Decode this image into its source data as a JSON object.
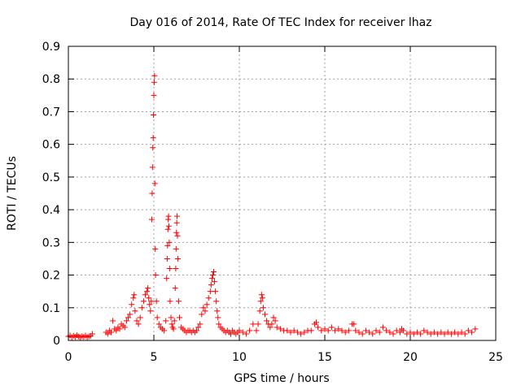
{
  "chart_data": {
    "type": "scatter",
    "title": "Day 016 of 2014, Rate Of TEC Index for receiver lhaz",
    "xlabel": "GPS time / hours",
    "ylabel": "ROTI / TECUs",
    "xlim": [
      0,
      25
    ],
    "ylim": [
      0,
      0.9
    ],
    "xticks": [
      0,
      5,
      10,
      15,
      20,
      25
    ],
    "yticks": [
      0,
      0.1,
      0.2,
      0.3,
      0.4,
      0.5,
      0.6,
      0.7,
      0.8,
      0.9
    ],
    "grid": true,
    "legend": "none",
    "marker": "+",
    "color": "#ff0000",
    "series": [
      {
        "x": [
          0.0,
          0.1,
          0.2,
          0.3,
          0.4,
          0.5,
          0.6,
          0.7,
          0.8,
          0.9,
          1.0,
          1.1,
          1.2,
          1.3,
          1.4,
          2.2,
          2.3,
          2.4,
          2.5,
          2.6,
          2.7,
          2.8,
          2.9,
          3.0,
          3.1,
          3.2,
          3.3,
          3.4,
          3.5,
          3.6,
          3.7,
          3.8,
          3.85,
          3.9,
          4.0,
          4.1,
          4.2,
          4.3,
          4.4,
          4.5,
          4.6,
          4.65,
          4.7,
          4.75,
          4.8,
          4.85,
          4.88,
          4.9,
          4.92,
          4.94,
          4.96,
          4.98,
          5.0,
          5.02,
          5.04,
          5.06,
          5.08,
          5.1,
          5.15,
          5.2,
          5.3,
          5.4,
          5.5,
          5.6,
          5.7,
          5.75,
          5.78,
          5.8,
          5.82,
          5.84,
          5.86,
          5.88,
          5.9,
          5.92,
          5.95,
          6.0,
          6.05,
          6.1,
          6.15,
          6.2,
          6.25,
          6.28,
          6.3,
          6.32,
          6.34,
          6.36,
          6.38,
          6.4,
          6.45,
          6.5,
          6.6,
          6.7,
          6.8,
          6.9,
          7.0,
          7.1,
          7.2,
          7.3,
          7.4,
          7.5,
          7.6,
          7.7,
          7.8,
          7.9,
          8.0,
          8.1,
          8.2,
          8.3,
          8.35,
          8.4,
          8.45,
          8.5,
          8.55,
          8.6,
          8.65,
          8.7,
          8.75,
          8.8,
          8.9,
          9.0,
          9.1,
          9.2,
          9.3,
          9.4,
          9.5,
          9.6,
          9.7,
          9.8,
          9.9,
          10.0,
          10.2,
          10.4,
          10.6,
          10.8,
          11.0,
          11.1,
          11.2,
          11.25,
          11.3,
          11.35,
          11.4,
          11.5,
          11.6,
          11.7,
          11.8,
          11.9,
          12.0,
          12.1,
          12.2,
          12.4,
          12.6,
          12.8,
          13.0,
          13.2,
          13.4,
          13.6,
          13.8,
          14.0,
          14.2,
          14.4,
          14.5,
          14.6,
          14.8,
          15.0,
          15.2,
          15.4,
          15.6,
          15.8,
          16.0,
          16.2,
          16.4,
          16.6,
          16.7,
          16.8,
          17.0,
          17.2,
          17.4,
          17.6,
          17.8,
          18.0,
          18.2,
          18.4,
          18.6,
          18.8,
          19.0,
          19.2,
          19.4,
          19.5,
          19.6,
          19.8,
          20.0,
          20.2,
          20.4,
          20.6,
          20.8,
          21.0,
          21.2,
          21.4,
          21.6,
          21.8,
          22.0,
          22.2,
          22.4,
          22.6,
          22.8,
          23.0,
          23.2,
          23.4,
          23.6,
          23.8
        ],
        "y": [
          0.012,
          0.015,
          0.01,
          0.014,
          0.011,
          0.016,
          0.012,
          0.01,
          0.013,
          0.011,
          0.015,
          0.01,
          0.012,
          0.014,
          0.02,
          0.025,
          0.02,
          0.03,
          0.025,
          0.06,
          0.035,
          0.03,
          0.04,
          0.035,
          0.05,
          0.045,
          0.04,
          0.06,
          0.07,
          0.08,
          0.11,
          0.13,
          0.14,
          0.09,
          0.06,
          0.05,
          0.07,
          0.1,
          0.12,
          0.14,
          0.15,
          0.16,
          0.13,
          0.11,
          0.09,
          0.12,
          0.37,
          0.45,
          0.53,
          0.59,
          0.62,
          0.69,
          0.75,
          0.79,
          0.81,
          0.48,
          0.28,
          0.2,
          0.12,
          0.07,
          0.05,
          0.04,
          0.035,
          0.03,
          0.06,
          0.19,
          0.25,
          0.29,
          0.34,
          0.37,
          0.38,
          0.35,
          0.3,
          0.22,
          0.12,
          0.07,
          0.05,
          0.04,
          0.035,
          0.06,
          0.16,
          0.22,
          0.28,
          0.33,
          0.36,
          0.38,
          0.32,
          0.25,
          0.12,
          0.07,
          0.04,
          0.035,
          0.03,
          0.025,
          0.03,
          0.03,
          0.025,
          0.03,
          0.025,
          0.03,
          0.04,
          0.05,
          0.08,
          0.1,
          0.09,
          0.11,
          0.13,
          0.15,
          0.17,
          0.19,
          0.2,
          0.21,
          0.18,
          0.15,
          0.12,
          0.09,
          0.07,
          0.05,
          0.04,
          0.035,
          0.03,
          0.025,
          0.03,
          0.025,
          0.02,
          0.03,
          0.025,
          0.02,
          0.025,
          0.03,
          0.025,
          0.02,
          0.03,
          0.05,
          0.03,
          0.05,
          0.09,
          0.12,
          0.14,
          0.13,
          0.1,
          0.08,
          0.06,
          0.05,
          0.04,
          0.05,
          0.07,
          0.06,
          0.04,
          0.035,
          0.03,
          0.03,
          0.025,
          0.03,
          0.025,
          0.02,
          0.025,
          0.03,
          0.03,
          0.05,
          0.055,
          0.04,
          0.03,
          0.035,
          0.03,
          0.04,
          0.03,
          0.035,
          0.03,
          0.025,
          0.03,
          0.05,
          0.05,
          0.03,
          0.025,
          0.02,
          0.03,
          0.025,
          0.02,
          0.03,
          0.025,
          0.04,
          0.03,
          0.025,
          0.02,
          0.03,
          0.025,
          0.035,
          0.03,
          0.02,
          0.025,
          0.02,
          0.025,
          0.02,
          0.03,
          0.025,
          0.02,
          0.025,
          0.02,
          0.025,
          0.02,
          0.025,
          0.02,
          0.025,
          0.02,
          0.025,
          0.02,
          0.03,
          0.025,
          0.035
        ]
      }
    ]
  }
}
